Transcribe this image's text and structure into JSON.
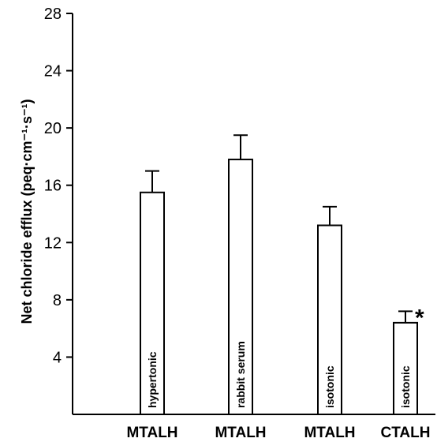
{
  "chart_data": {
    "type": "bar",
    "ylabel": "Net chloride efflux (peq·cm⁻¹·s⁻¹)",
    "ylim": [
      0,
      28
    ],
    "yticks": [
      4,
      8,
      12,
      16,
      20,
      24,
      28
    ],
    "ytick_labels": [
      "4",
      "8",
      "12",
      "16",
      "20",
      "24",
      "28"
    ],
    "categories": [
      "MTALH",
      "MTALH",
      "MTALH",
      "CTALH"
    ],
    "bar_labels": [
      "hypertonic",
      "rabbit serum",
      "isotonic",
      "isotonic"
    ],
    "values": [
      15.5,
      17.8,
      13.2,
      6.4
    ],
    "errors": [
      1.5,
      1.7,
      1.3,
      0.8
    ],
    "annotations": [
      "",
      "",
      "",
      "*"
    ],
    "grid": false,
    "bar_fill": "#ffffff",
    "stroke_color": "#000000"
  }
}
